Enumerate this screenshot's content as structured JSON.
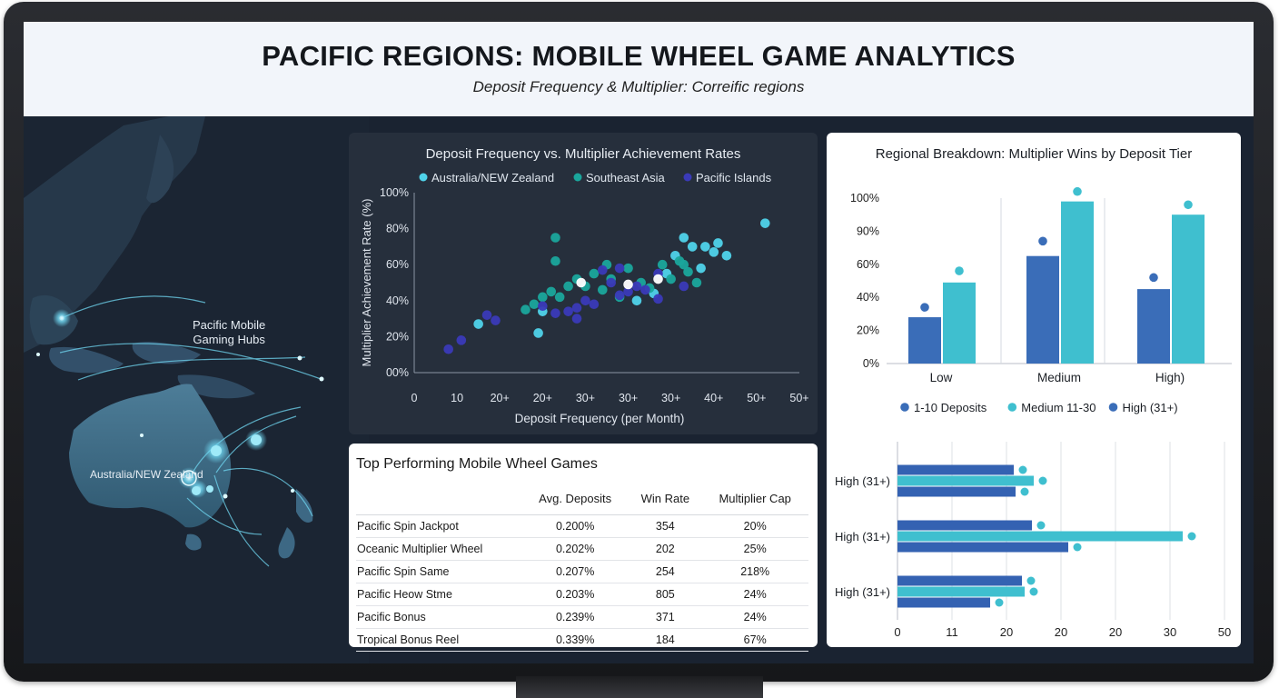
{
  "header": {
    "title": "PACIFIC REGIONS: MOBILE WHEEL GAME ANALYTICS",
    "subtitle": "Deposit Frequency & Multiplier: Correific regions"
  },
  "map": {
    "label_hubs_line1": "Pacific Mobile",
    "label_hubs_line2": "Gaming Hubs",
    "label_region": "Australia/NEW Zealand",
    "accent_color": "#6fd6f0"
  },
  "chart_data": [
    {
      "type": "scatter",
      "title": "Deposit Frequency vs. Multiplier Achievement Rates",
      "xlabel": "Deposit Frequency (per Month)",
      "ylabel": "Multiplier Achievement Rate (%)",
      "x_tick_labels": [
        "0",
        "10",
        "20+",
        "20+",
        "30+",
        "30+",
        "30+",
        "40+",
        "50+",
        "50+"
      ],
      "y_tick_labels": [
        "00%",
        "20%",
        "40%",
        "60%",
        "80%",
        "100%"
      ],
      "xlim": [
        0,
        90
      ],
      "ylim": [
        0,
        100
      ],
      "legend": "top",
      "series": [
        {
          "name": "Australia/NEW Zealand",
          "color": "#4fd3ea",
          "points": [
            [
              30,
              34
            ],
            [
              52,
              40
            ],
            [
              59,
              55
            ],
            [
              61,
              65
            ],
            [
              63,
              75
            ],
            [
              65,
              70
            ],
            [
              67,
              58
            ],
            [
              68,
              70
            ],
            [
              70,
              67
            ],
            [
              71,
              72
            ],
            [
              73,
              65
            ],
            [
              82,
              83
            ],
            [
              29,
              22
            ],
            [
              15,
              27
            ],
            [
              56,
              44
            ]
          ]
        },
        {
          "name": "Southeast Asia",
          "color": "#1aa69c",
          "points": [
            [
              26,
              35
            ],
            [
              28,
              38
            ],
            [
              30,
              42
            ],
            [
              32,
              45
            ],
            [
              34,
              42
            ],
            [
              36,
              48
            ],
            [
              38,
              52
            ],
            [
              40,
              48
            ],
            [
              42,
              55
            ],
            [
              44,
              46
            ],
            [
              46,
              52
            ],
            [
              48,
              42
            ],
            [
              50,
              58
            ],
            [
              53,
              50
            ],
            [
              55,
              47
            ],
            [
              58,
              60
            ],
            [
              60,
              52
            ],
            [
              62,
              62
            ],
            [
              64,
              56
            ],
            [
              66,
              50
            ],
            [
              33,
              62
            ],
            [
              33,
              75
            ],
            [
              45,
              60
            ],
            [
              63,
              60
            ]
          ]
        },
        {
          "name": "Pacific Islands",
          "color": "#3a3ab8",
          "points": [
            [
              8,
              13
            ],
            [
              11,
              18
            ],
            [
              17,
              32
            ],
            [
              19,
              29
            ],
            [
              33,
              33
            ],
            [
              36,
              34
            ],
            [
              38,
              30
            ],
            [
              40,
              40
            ],
            [
              42,
              38
            ],
            [
              44,
              57
            ],
            [
              46,
              50
            ],
            [
              48,
              43
            ],
            [
              50,
              45
            ],
            [
              52,
              48
            ],
            [
              54,
              46
            ],
            [
              57,
              55
            ],
            [
              63,
              48
            ],
            [
              38,
              36
            ],
            [
              48,
              58
            ],
            [
              30,
              37
            ],
            [
              57,
              41
            ]
          ]
        },
        {
          "name": "",
          "color": "#ffffff",
          "points": [
            [
              39,
              50
            ],
            [
              50,
              49
            ],
            [
              57,
              52
            ]
          ]
        }
      ]
    },
    {
      "type": "bar",
      "title": "Regional Breakdown: Multiplier Wins by Deposit Tier",
      "categories": [
        "Low",
        "Medium",
        "High)"
      ],
      "y_tick_labels": [
        "0%",
        "20%",
        "40%",
        "60%",
        "90%",
        "100%"
      ],
      "ylim": [
        0,
        100
      ],
      "legend": "bottom",
      "series": [
        {
          "name": "1-10 Deposits",
          "color": "#3a6db8",
          "values": [
            28,
            65,
            45
          ]
        },
        {
          "name": "Medium 11-30",
          "color": "#3fbfcf",
          "values": [
            49,
            98,
            90
          ]
        }
      ],
      "dot_values": [
        [
          34,
          56
        ],
        [
          74,
          104
        ],
        [
          52,
          96
        ]
      ],
      "legend_extra": [
        {
          "name": "High (31+)",
          "color": "#3a6db8"
        }
      ]
    },
    {
      "type": "bar",
      "orientation": "horizontal",
      "categories": [
        "High (31+)",
        "High (31+)",
        "High (31+)"
      ],
      "x_tick_labels": [
        "0",
        "11",
        "20",
        "20",
        "20",
        "30",
        "50"
      ],
      "xlim": [
        0,
        36
      ],
      "series": [
        {
          "name": "",
          "color": "#3462b2",
          "values": [
            12.8,
            14.8,
            13.7
          ]
        },
        {
          "name": "",
          "color": "#3fbfcf",
          "values": [
            15.0,
            31.4,
            14.0
          ]
        },
        {
          "name": "",
          "color": "#3462b2",
          "values": [
            13.0,
            18.8,
            10.2
          ]
        }
      ],
      "second_panel_colors": [
        "#3fbfcf",
        "#3fbfcf",
        "#3fbfcf"
      ],
      "row2_values": [
        31.0,
        0,
        0
      ]
    }
  ],
  "table": {
    "title": "Top Performing Mobile Wheel Games",
    "headers": [
      "",
      "Avg. Deposits",
      "Win Rate",
      "Multiplier Cap"
    ],
    "rows": [
      [
        "Pacific Spin Jackpot",
        "0.200%",
        "354",
        "20%"
      ],
      [
        "Oceanic Multiplier Wheel",
        "0.202%",
        "202",
        "25%"
      ],
      [
        "Pacific Spin Same",
        "0.207%",
        "254",
        "218%"
      ],
      [
        "Pacific Heow Stme",
        "0.203%",
        "805",
        "24%"
      ],
      [
        "Pacific Bonus",
        "0.239%",
        "371",
        "24%"
      ],
      [
        "Tropical Bonus Reel",
        "0.339%",
        "184",
        "67%"
      ]
    ]
  }
}
